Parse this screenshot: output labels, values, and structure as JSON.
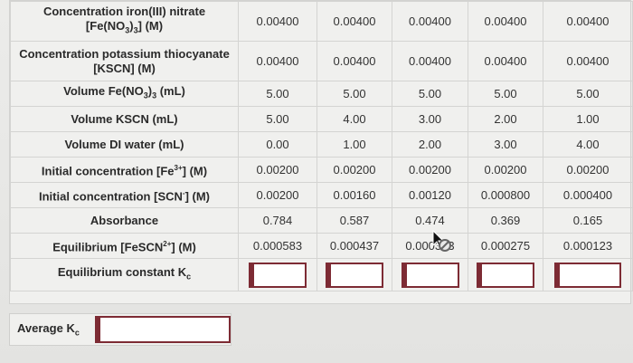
{
  "rows": [
    {
      "label": "Concentration iron(III) nitrate [Fe(NO3)3] (M)",
      "values": [
        "0.00400",
        "0.00400",
        "0.00400",
        "0.00400",
        "0.00400"
      ]
    },
    {
      "label": "Concentration potassium thiocyanate [KSCN] (M)",
      "values": [
        "0.00400",
        "0.00400",
        "0.00400",
        "0.00400",
        "0.00400"
      ]
    },
    {
      "label": "Volume Fe(NO3)3 (mL)",
      "values": [
        "5.00",
        "5.00",
        "5.00",
        "5.00",
        "5.00"
      ]
    },
    {
      "label": "Volume KSCN (mL)",
      "values": [
        "5.00",
        "4.00",
        "3.00",
        "2.00",
        "1.00"
      ]
    },
    {
      "label": "Volume DI water (mL)",
      "values": [
        "0.00",
        "1.00",
        "2.00",
        "3.00",
        "4.00"
      ]
    },
    {
      "label": "Initial concentration [Fe3+] (M)",
      "values": [
        "0.00200",
        "0.00200",
        "0.00200",
        "0.00200",
        "0.00200"
      ]
    },
    {
      "label": "Initial concentration [SCN-] (M)",
      "values": [
        "0.00200",
        "0.00160",
        "0.00120",
        "0.000800",
        "0.000400"
      ]
    },
    {
      "label": "Absorbance",
      "values": [
        "0.784",
        "0.587",
        "0.474",
        "0.369",
        "0.165"
      ]
    },
    {
      "label": "Equilibrium [FeSCN2+] (M)",
      "values": [
        "0.000583",
        "0.000437",
        "0.000353",
        "0.000275",
        "0.000123"
      ]
    },
    {
      "label": "Equilibrium constant Kc",
      "values": [
        "",
        "",
        "",
        "",
        ""
      ]
    }
  ],
  "label_parts": {
    "fe_nitrate_line1": "Concentration iron(III) nitrate",
    "fe_nitrate_line2a": "[Fe(NO",
    "fe_nitrate_line2b": ")",
    "fe_nitrate_line2c": "] (M)",
    "kscn_line1": "Concentration potassium thiocyanate",
    "kscn_line2": "[KSCN] (M)",
    "vol_fe_a": "Volume Fe(NO",
    "vol_fe_b": ")",
    "vol_fe_c": " (mL)",
    "vol_kscn": "Volume KSCN (mL)",
    "vol_water": "Volume DI water (mL)",
    "init_fe_a": "Initial concentration [Fe",
    "init_fe_sup": "3+",
    "init_fe_c": "] (M)",
    "init_scn_a": "Initial concentration [SCN",
    "init_scn_sup": "-",
    "init_scn_c": "] (M)",
    "absorbance": "Absorbance",
    "eq_fescn_a": "Equilibrium [FeSCN",
    "eq_fescn_sup": "2+",
    "eq_fescn_c": "] (M)",
    "eq_const_a": "Equilibrium constant K",
    "sub_c": "c",
    "sub_3": "3"
  },
  "average": {
    "label_a": "Average K",
    "label_sub": "c",
    "value": ""
  },
  "colors": {
    "input_border": "#7d2b34",
    "background": "#e6e6e4"
  }
}
